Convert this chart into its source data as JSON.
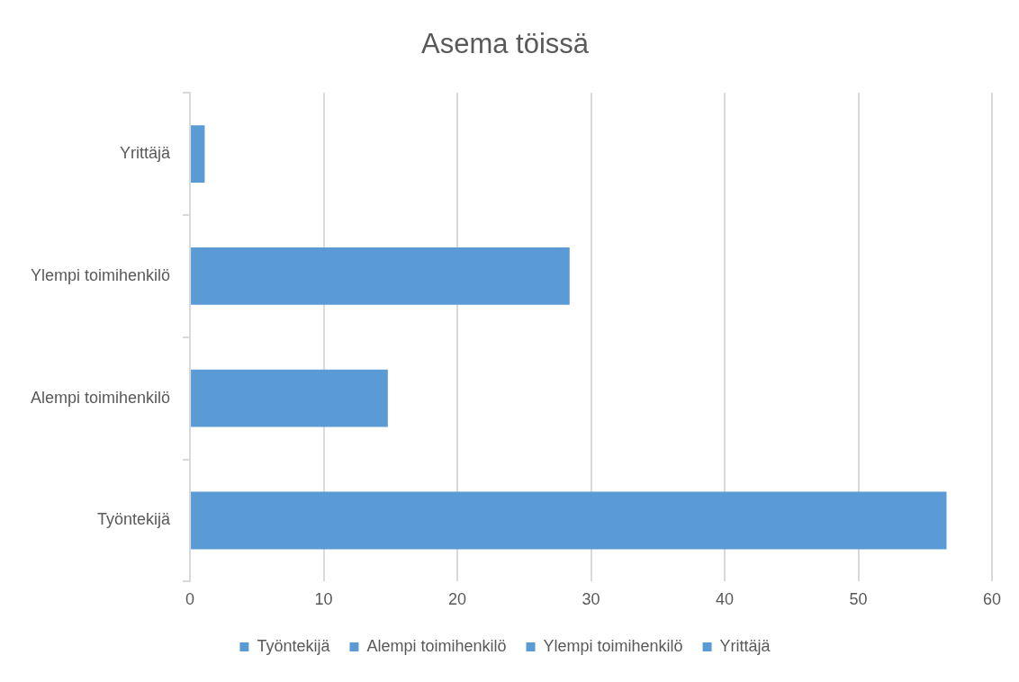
{
  "chart_data": {
    "type": "bar",
    "orientation": "horizontal",
    "title": "Asema töissä",
    "categories": [
      "Yrittäjä",
      "Ylempi toimihenkilö",
      "Alempi toimihenkilö",
      "Työntekijä"
    ],
    "series": [
      {
        "name": "Työntekijä",
        "color": "#5b9bd5",
        "values": [
          null,
          null,
          null,
          56.6
        ]
      },
      {
        "name": "Alempi toimihenkilö",
        "color": "#5b9bd5",
        "values": [
          null,
          null,
          14.8,
          null
        ]
      },
      {
        "name": "Ylempi toimihenkilö",
        "color": "#5b9bd5",
        "values": [
          null,
          28.4,
          null,
          null
        ]
      },
      {
        "name": "Yrittäjä",
        "color": "#5b9bd5",
        "values": [
          1.1,
          null,
          null,
          null
        ]
      }
    ],
    "xlim": [
      0,
      60
    ],
    "xticks": [
      0,
      10,
      20,
      30,
      40,
      50,
      60
    ],
    "grid": "x",
    "legend": "bottom"
  }
}
